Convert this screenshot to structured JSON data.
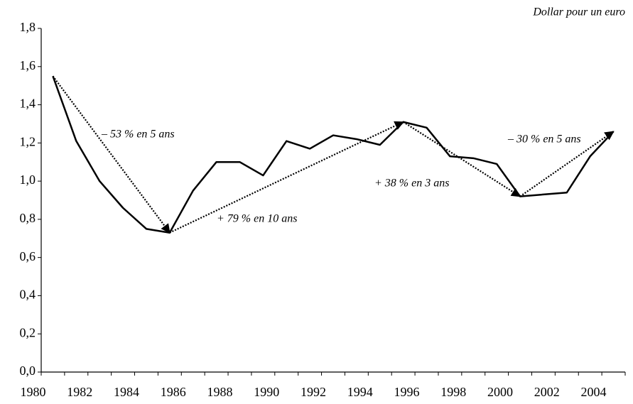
{
  "chart_data": {
    "type": "line",
    "y_label": "Dollar pour un euro",
    "categories": [
      "1980",
      null,
      "1982",
      null,
      "1984",
      null,
      "1986",
      null,
      "1988",
      null,
      "1990",
      null,
      "1992",
      null,
      "1994",
      null,
      "1996",
      null,
      "1998",
      null,
      "2000",
      null,
      "2002",
      null,
      "2004"
    ],
    "series": [
      {
        "color": "#000000",
        "values": [
          1.55,
          1.21,
          1.0,
          0.86,
          0.75,
          0.73,
          0.95,
          1.1,
          1.1,
          1.03,
          1.21,
          1.17,
          1.24,
          1.22,
          1.19,
          1.31,
          1.28,
          1.13,
          1.12,
          1.09,
          0.92,
          0.93,
          0.94,
          1.13,
          1.26
        ]
      }
    ],
    "ylim": [
      0,
      1.8
    ],
    "yticks": [
      {
        "value": 0,
        "label": "0,0"
      },
      {
        "value": 0.2,
        "label": "0,2"
      },
      {
        "value": 0.4,
        "label": "0,4"
      },
      {
        "value": 0.6,
        "label": "0,6"
      },
      {
        "value": 0.8,
        "label": "0,8"
      },
      {
        "value": 1.0,
        "label": "1,0"
      },
      {
        "value": 1.2,
        "label": "1,2"
      },
      {
        "value": 1.4,
        "label": "1,4"
      },
      {
        "value": 1.6,
        "label": "1,6"
      },
      {
        "value": 1.8,
        "label": "1,8"
      }
    ],
    "annotations": [
      "– 53 % en 5 ans",
      "+ 79 % en 10 ans",
      "+ 38 % en 3 ans",
      "– 30 % en 5 ans"
    ]
  }
}
